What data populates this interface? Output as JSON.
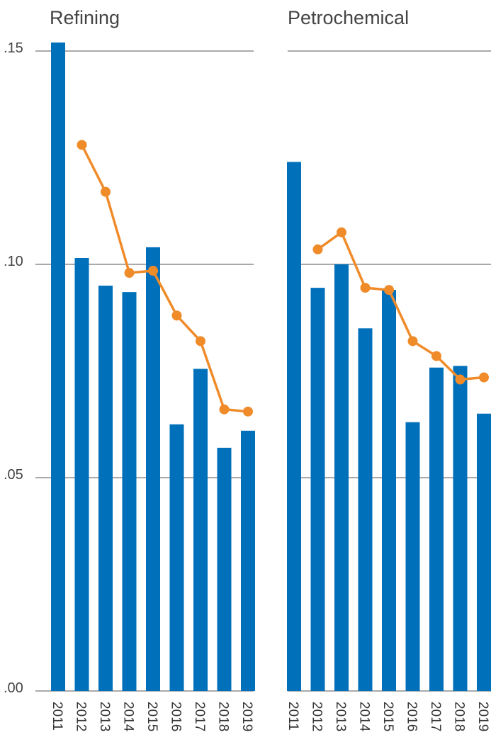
{
  "colors": {
    "bar": "#0070bb",
    "line": "#f08b2a",
    "grid": "#555555"
  },
  "chart_data": [
    {
      "type": "bar+line",
      "title": "Refining",
      "categories": [
        "2011",
        "2012",
        "2013",
        "2014",
        "2015",
        "2016",
        "2017",
        "2018",
        "2019"
      ],
      "series": [
        {
          "type": "bar",
          "values": [
            0.152,
            0.1015,
            0.095,
            0.0935,
            0.104,
            0.0625,
            0.0755,
            0.057,
            0.061
          ]
        },
        {
          "type": "line",
          "values": [
            null,
            0.128,
            0.117,
            0.098,
            0.0985,
            0.088,
            0.082,
            0.066,
            0.0655
          ]
        }
      ],
      "ylim": [
        0,
        0.15
      ],
      "yticks": [
        ".15",
        ".10",
        ".05",
        ".00"
      ],
      "ytick_values": [
        0.15,
        0.1,
        0.05,
        0.0
      ],
      "grid": true
    },
    {
      "type": "bar+line",
      "title": "Petrochemical",
      "categories": [
        "2011",
        "2012",
        "2013",
        "2014",
        "2015",
        "2016",
        "2017",
        "2018",
        "2019"
      ],
      "series": [
        {
          "type": "bar",
          "values": [
            0.124,
            0.0945,
            0.1,
            0.085,
            0.094,
            0.063,
            0.0758,
            0.0762,
            0.065
          ]
        },
        {
          "type": "line",
          "values": [
            null,
            0.1035,
            0.1075,
            0.0945,
            0.094,
            0.082,
            0.0785,
            0.073,
            0.0735
          ]
        }
      ],
      "ylim": [
        0,
        0.15
      ],
      "grid": true
    }
  ]
}
